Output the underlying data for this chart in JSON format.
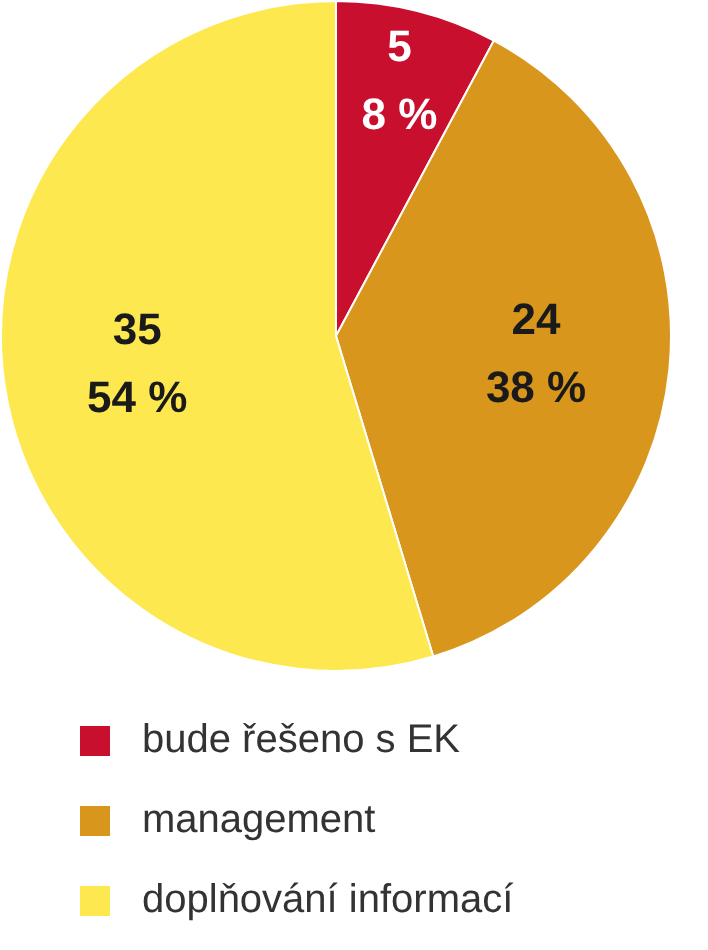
{
  "chart_data": {
    "type": "pie",
    "categories": [
      "bude řešeno s EK",
      "management",
      "doplňování informací"
    ],
    "values": [
      5,
      24,
      35
    ],
    "colors": [
      "#c8102e",
      "#d9961c",
      "#fde94f"
    ],
    "value_labels": [
      "5\n8 %",
      "24\n38 %",
      "35\n54 %"
    ],
    "legend": "bottom"
  }
}
